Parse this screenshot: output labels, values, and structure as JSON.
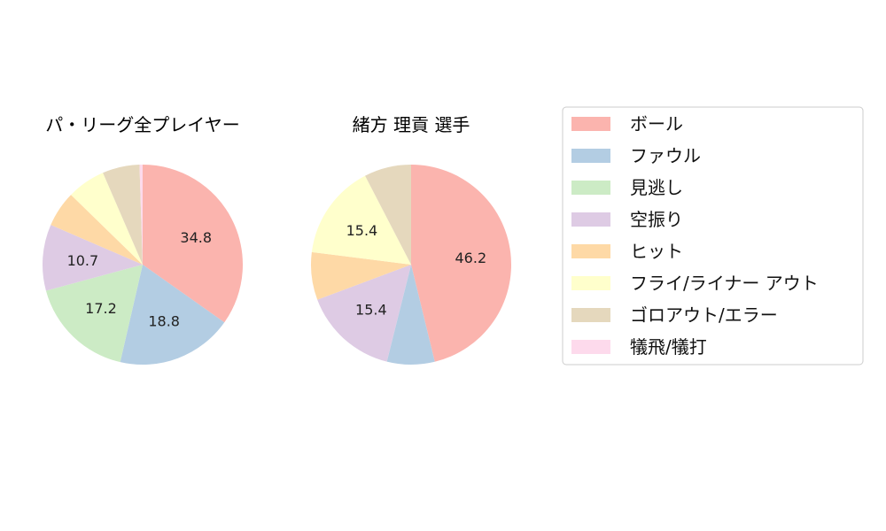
{
  "colors": {
    "ball": "#FBB4AE",
    "foul": "#B3CDE3",
    "looking": "#CCEBC5",
    "swinging": "#DECBE4",
    "hit": "#FED9A6",
    "fly_liner_out": "#FFFFCC",
    "grounder_out_error": "#E5D8BD",
    "sacrifice": "#FDDAEC"
  },
  "legend": {
    "items": [
      {
        "key": "ball",
        "label": "ボール"
      },
      {
        "key": "foul",
        "label": "ファウル"
      },
      {
        "key": "looking",
        "label": "見逃し"
      },
      {
        "key": "swinging",
        "label": "空振り"
      },
      {
        "key": "hit",
        "label": "ヒット"
      },
      {
        "key": "fly_liner_out",
        "label": "フライ/ライナー アウト"
      },
      {
        "key": "grounder_out_error",
        "label": "ゴロアウト/エラー"
      },
      {
        "key": "sacrifice",
        "label": "犠飛/犠打"
      }
    ]
  },
  "chart_data": [
    {
      "type": "pie",
      "title": "パ・リーグ全プレイヤー",
      "categories": [
        "ボール",
        "ファウル",
        "見逃し",
        "空振り",
        "ヒット",
        "フライ/ライナー アウト",
        "ゴロアウト/エラー",
        "犠飛/犠打"
      ],
      "values": [
        34.8,
        18.8,
        17.2,
        10.7,
        5.8,
        6.2,
        6.0,
        0.5
      ],
      "data_labels": [
        "34.8",
        "18.8",
        "17.2",
        "10.7",
        "",
        "",
        "",
        ""
      ],
      "start_angle": "top",
      "direction": "clockwise"
    },
    {
      "type": "pie",
      "title": "緒方 理貢  選手",
      "categories": [
        "ボール",
        "ファウル",
        "見逃し",
        "空振り",
        "ヒット",
        "フライ/ライナー アウト",
        "ゴロアウト/エラー",
        "犠飛/犠打"
      ],
      "values": [
        46.2,
        7.7,
        0,
        15.4,
        7.7,
        15.4,
        7.6,
        0
      ],
      "data_labels": [
        "46.2",
        "",
        "",
        "15.4",
        "",
        "15.4",
        "",
        ""
      ],
      "start_angle": "top",
      "direction": "clockwise"
    }
  ]
}
